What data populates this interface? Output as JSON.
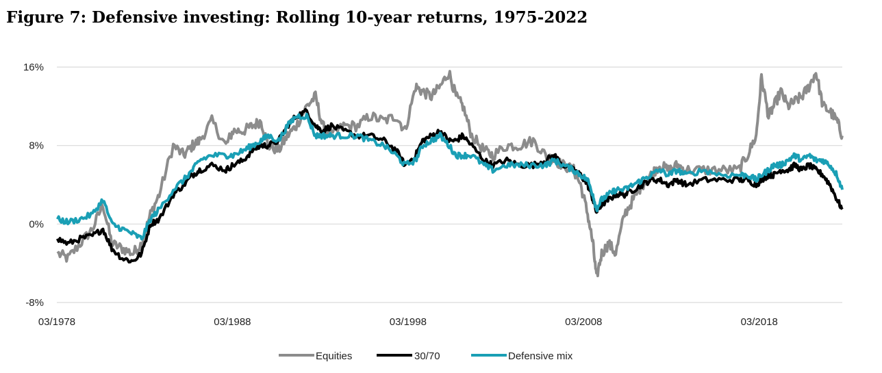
{
  "chart_data": {
    "type": "line",
    "title": "Figure 7: Defensive investing: Rolling 10-year returns, 1975-2022",
    "xlabel": "",
    "ylabel": "",
    "x_range": [
      1978.17,
      2022.9
    ],
    "ylim": [
      -8,
      16
    ],
    "y_ticks": [
      -8,
      0,
      8,
      16
    ],
    "y_tick_labels": [
      "-8%",
      "0%",
      "8%",
      "16%"
    ],
    "x_ticks": [
      1978.17,
      1988.17,
      1998.17,
      2008.17,
      2018.17
    ],
    "x_tick_labels": [
      "03/1978",
      "03/1988",
      "03/1998",
      "03/2008",
      "03/2018"
    ],
    "grid": "horizontal",
    "legend_position": "bottom",
    "series": [
      {
        "name": "Equities",
        "color": "#8c8c8c",
        "x": [
          1978.2,
          1978.8,
          1979.5,
          1980.2,
          1980.8,
          1981.3,
          1981.9,
          1982.5,
          1983.0,
          1983.5,
          1984.0,
          1984.8,
          1985.4,
          1985.9,
          1986.3,
          1987.0,
          1987.8,
          1988.2,
          1988.8,
          1989.3,
          1989.8,
          1990.2,
          1990.8,
          1991.3,
          1991.8,
          1992.4,
          1992.9,
          1993.3,
          1993.8,
          1994.5,
          1995.3,
          1996.0,
          1996.8,
          1997.5,
          1998.0,
          1998.6,
          1999.0,
          1999.5,
          2000.0,
          2000.5,
          2000.9,
          2001.3,
          2001.8,
          2002.5,
          2003.0,
          2003.8,
          2004.5,
          2005.3,
          2006.0,
          2006.5,
          2007.0,
          2007.6,
          2008.0,
          2008.4,
          2008.7,
          2008.9,
          2009.2,
          2009.6,
          2010.0,
          2010.5,
          2011.0,
          2011.5,
          2012.0,
          2012.5,
          2013.0,
          2013.5,
          2014.0,
          2015.0,
          2016.0,
          2017.0,
          2017.5,
          2018.0,
          2018.3,
          2018.7,
          2019.0,
          2019.4,
          2019.8,
          2020.2,
          2020.6,
          2021.0,
          2021.4,
          2021.8,
          2022.2,
          2022.6,
          2022.9
        ],
        "values": [
          -3,
          -3.5,
          -2,
          -0.5,
          2,
          -2,
          -2.5,
          -3,
          -2,
          1,
          3,
          8,
          7,
          8,
          8.5,
          10.5,
          8,
          9.5,
          9.5,
          10,
          10.5,
          8,
          7.5,
          9,
          10,
          12,
          13,
          10,
          9,
          10,
          10,
          11,
          10.5,
          11,
          9.5,
          14,
          13.5,
          13,
          14,
          15.5,
          13,
          12,
          9,
          7.5,
          7,
          8,
          8,
          8.5,
          7,
          6.5,
          6,
          5.5,
          4,
          1,
          -2,
          -5.5,
          -3,
          -2,
          -3,
          1,
          2.5,
          4,
          5,
          6,
          5.5,
          6,
          5.5,
          5.5,
          5.5,
          5.5,
          7,
          9,
          15,
          11,
          12,
          13.5,
          12,
          12.5,
          13,
          14,
          15.5,
          12,
          11.5,
          10.5,
          9
        ]
      },
      {
        "name": "30/70",
        "color": "#000000",
        "x": [
          1978.2,
          1978.8,
          1979.5,
          1980.2,
          1980.8,
          1981.3,
          1981.9,
          1982.5,
          1983.0,
          1983.5,
          1984.0,
          1984.8,
          1985.4,
          1985.9,
          1986.3,
          1987.0,
          1987.8,
          1988.2,
          1988.8,
          1989.3,
          1989.8,
          1990.2,
          1990.8,
          1991.3,
          1991.8,
          1992.4,
          1992.9,
          1993.3,
          1993.8,
          1994.5,
          1995.3,
          1996.0,
          1996.8,
          1997.5,
          1998.0,
          1998.6,
          1999.0,
          1999.5,
          2000.0,
          2000.5,
          2000.9,
          2001.3,
          2001.8,
          2002.5,
          2003.0,
          2003.8,
          2004.5,
          2005.3,
          2006.0,
          2006.5,
          2007.0,
          2007.6,
          2008.0,
          2008.4,
          2008.7,
          2008.9,
          2009.2,
          2009.6,
          2010.0,
          2010.5,
          2011.0,
          2011.5,
          2012.0,
          2012.5,
          2013.0,
          2013.5,
          2014.0,
          2015.0,
          2016.0,
          2017.0,
          2017.5,
          2018.0,
          2018.3,
          2018.7,
          2019.0,
          2019.4,
          2019.8,
          2020.2,
          2020.6,
          2021.0,
          2021.4,
          2021.8,
          2022.2,
          2022.6,
          2022.9
        ],
        "values": [
          -1.5,
          -2,
          -1.5,
          -1.2,
          -0.5,
          -2.5,
          -3.5,
          -3.8,
          -3,
          0,
          0.5,
          3,
          4,
          5,
          5.5,
          6,
          5.5,
          6,
          6.5,
          7.5,
          8,
          8,
          8.5,
          10,
          11,
          11.5,
          10,
          9.5,
          10,
          9.5,
          9,
          9,
          8.5,
          7.5,
          6,
          7,
          8.5,
          9,
          9.5,
          8.5,
          8.5,
          9,
          8,
          6.5,
          6,
          6.5,
          6,
          6,
          6.5,
          7,
          6,
          5.5,
          5,
          4,
          2.5,
          1.2,
          2,
          2.5,
          3,
          3,
          3.5,
          4,
          4.5,
          4.5,
          4,
          4.5,
          4,
          4.5,
          4.5,
          4.5,
          4.5,
          4,
          4.5,
          5,
          5,
          5.5,
          5.5,
          6,
          5.5,
          6,
          5.5,
          5,
          4,
          2.5,
          1.5
        ]
      },
      {
        "name": "Defensive mix",
        "color": "#1a9fb5",
        "x": [
          1978.2,
          1978.8,
          1979.5,
          1980.2,
          1980.8,
          1981.3,
          1981.9,
          1982.5,
          1983.0,
          1983.5,
          1984.0,
          1984.8,
          1985.4,
          1985.9,
          1986.3,
          1987.0,
          1987.8,
          1988.2,
          1988.8,
          1989.3,
          1989.8,
          1990.2,
          1990.8,
          1991.3,
          1991.8,
          1992.4,
          1992.9,
          1993.3,
          1993.8,
          1994.5,
          1995.3,
          1996.0,
          1996.8,
          1997.5,
          1998.0,
          1998.6,
          1999.0,
          1999.5,
          2000.0,
          2000.5,
          2000.9,
          2001.3,
          2001.8,
          2002.5,
          2003.0,
          2003.8,
          2004.5,
          2005.3,
          2006.0,
          2006.5,
          2007.0,
          2007.6,
          2008.0,
          2008.4,
          2008.7,
          2008.9,
          2009.2,
          2009.6,
          2010.0,
          2010.5,
          2011.0,
          2011.5,
          2012.0,
          2012.5,
          2013.0,
          2013.5,
          2014.0,
          2015.0,
          2016.0,
          2017.0,
          2017.5,
          2018.0,
          2018.3,
          2018.7,
          2019.0,
          2019.4,
          2019.8,
          2020.2,
          2020.6,
          2021.0,
          2021.4,
          2021.8,
          2022.2,
          2022.6,
          2022.9
        ],
        "values": [
          0.5,
          0.2,
          0.5,
          1,
          2.5,
          0,
          -0.5,
          -1,
          -1.5,
          0.5,
          1.5,
          3.5,
          4.5,
          5.5,
          6.5,
          7,
          7,
          7,
          7.5,
          8,
          8.5,
          9,
          8.5,
          10,
          11,
          11,
          9,
          9,
          9,
          9,
          9,
          8.5,
          8,
          7,
          6,
          6.5,
          8,
          8.5,
          9,
          8,
          7,
          7,
          7,
          6,
          5.5,
          6,
          6,
          6,
          6,
          6.5,
          6,
          5.5,
          5,
          4.5,
          3,
          1.5,
          2.5,
          3,
          3.5,
          3.5,
          4,
          4.5,
          5,
          5.5,
          5,
          5.5,
          5,
          5.5,
          5,
          5,
          5,
          4.5,
          5,
          5.5,
          6,
          6,
          6.5,
          7,
          6.5,
          7,
          6.5,
          6.5,
          6,
          5,
          3.5
        ]
      }
    ]
  }
}
